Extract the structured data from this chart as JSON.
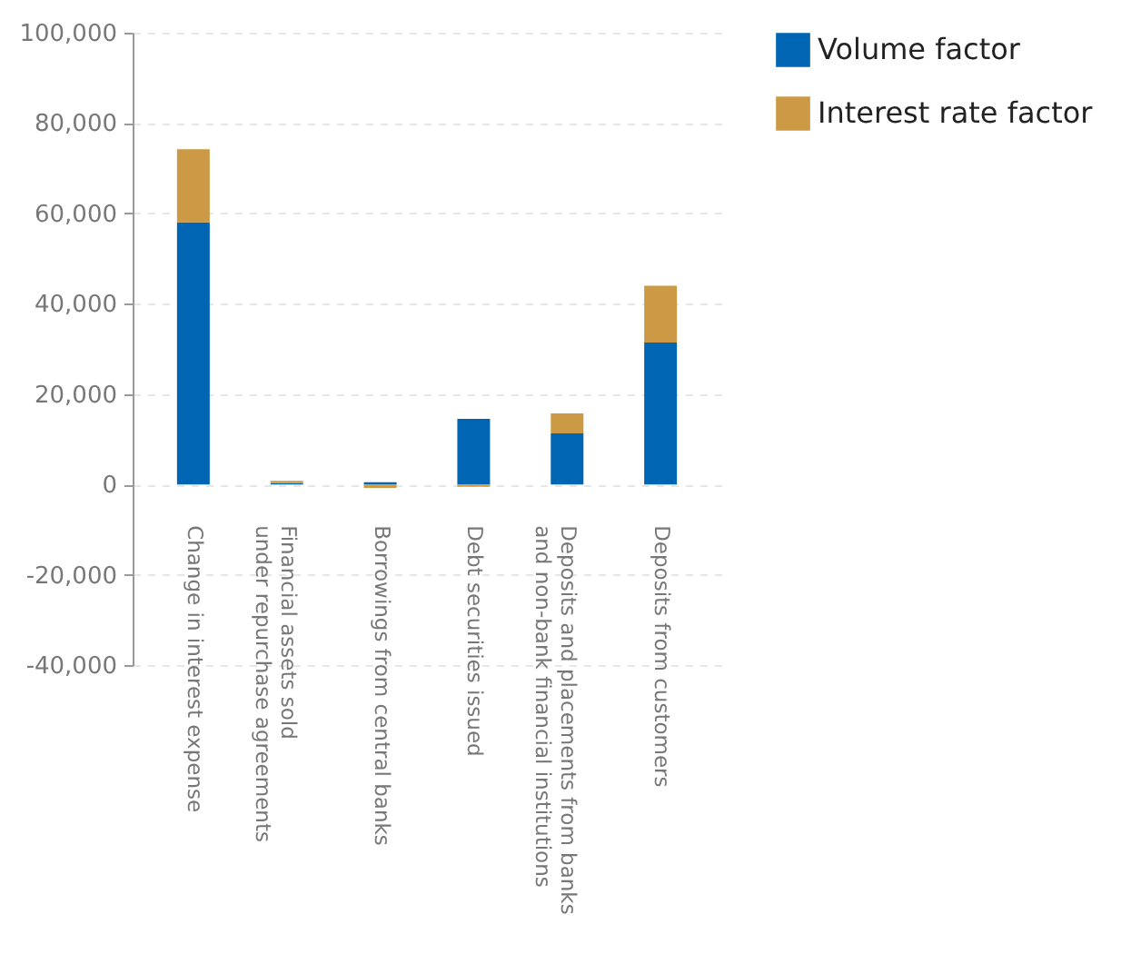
{
  "chart_data": {
    "type": "bar",
    "stacked": true,
    "categories": [
      "Change in interest expense",
      "Financial assets sold under repurchase agreements",
      "Borrowings from central banks",
      "Debt securities issued",
      "Deposits and placements from banks and non-bank financial institutions",
      "Deposits from customers"
    ],
    "series": [
      {
        "name": "Volume factor",
        "color": "#0066b3",
        "values": [
          58000,
          300,
          500,
          14500,
          11300,
          31400
        ]
      },
      {
        "name": "Interest rate factor",
        "color": "#cc9a45",
        "values": [
          16200,
          500,
          -800,
          -500,
          4400,
          12600
        ]
      }
    ],
    "ylim": [
      -40000,
      100000
    ],
    "yticks": [
      {
        "value": -40000,
        "label": "-40,000"
      },
      {
        "value": -20000,
        "label": "-20,000"
      },
      0,
      {
        "value": 20000,
        "label": "20,000"
      },
      {
        "value": 40000,
        "label": "40,000"
      },
      {
        "value": 60000,
        "label": "60,000"
      },
      {
        "value": 80000,
        "label": "80,000"
      },
      {
        "value": 100000,
        "label": "100,000"
      }
    ],
    "grid": "y",
    "legend": "top right"
  }
}
